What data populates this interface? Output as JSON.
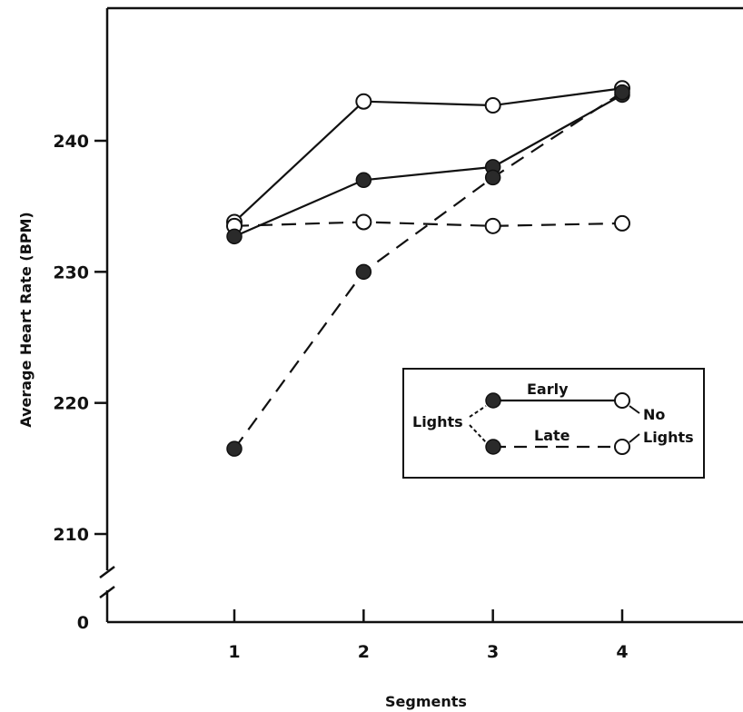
{
  "chart_data": {
    "type": "line",
    "xlabel": "Segments",
    "ylabel": "Average Heart Rate (BPM)",
    "x": [
      1,
      2,
      3,
      4
    ],
    "ylim": [
      205,
      250
    ],
    "y_ticks": [
      210,
      220,
      230,
      240
    ],
    "y_zero_label": "0",
    "axis_break": true,
    "grid": false,
    "legend_position": "center-right",
    "series": [
      {
        "group": "Early",
        "condition": "Lights",
        "line": "solid",
        "marker": "filled",
        "values": [
          232.7,
          237.0,
          238.0,
          243.5
        ]
      },
      {
        "group": "Early",
        "condition": "No Lights",
        "line": "solid",
        "marker": "open",
        "values": [
          233.8,
          243.0,
          242.7,
          244.0
        ]
      },
      {
        "group": "Late",
        "condition": "Lights",
        "line": "dashed",
        "marker": "filled",
        "values": [
          216.5,
          230.0,
          237.2,
          243.7
        ]
      },
      {
        "group": "Late",
        "condition": "No Lights",
        "line": "dashed",
        "marker": "open",
        "values": [
          233.5,
          233.8,
          233.5,
          233.7
        ]
      }
    ]
  },
  "legend": {
    "lights_label": "Lights",
    "early_label": "Early",
    "late_label": "Late",
    "no_label": "No",
    "lights2_label": "Lights"
  }
}
